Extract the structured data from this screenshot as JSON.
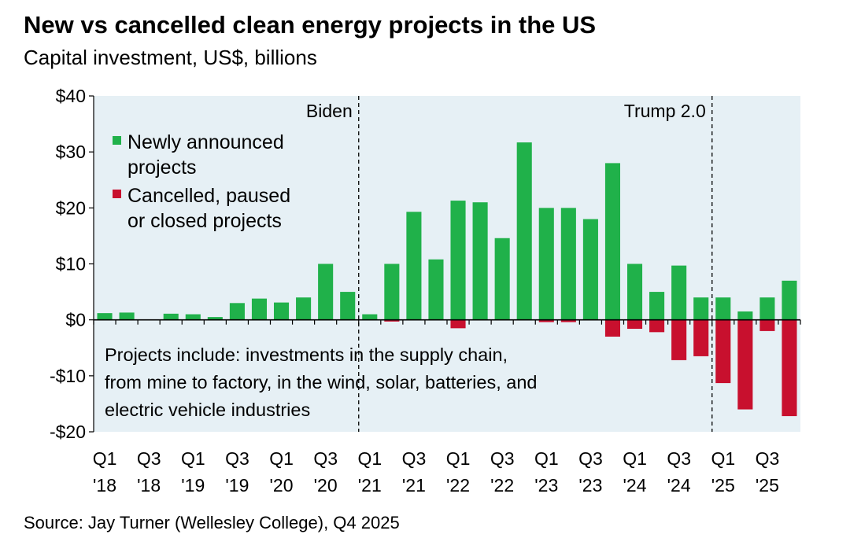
{
  "title": "New vs cancelled clean energy projects in the US",
  "subtitle": "Capital investment, US$, billions",
  "source": "Source: Jay Turner (Wellesley College), Q4 2025",
  "colors": {
    "new": "#20b14a",
    "cancelled": "#c8102e",
    "plot_bg": "#e6f0f5"
  },
  "chart_data": {
    "type": "bar",
    "title": "New vs cancelled clean energy projects in the US",
    "ylabel": "Capital investment, US$, billions",
    "ylim": [
      -20,
      40
    ],
    "yticks": [
      40,
      30,
      20,
      10,
      0,
      -10,
      -20
    ],
    "ytick_labels": [
      "$40",
      "$30",
      "$20",
      "$10",
      "$0",
      "-$10",
      "-$20"
    ],
    "categories": [
      "Q1 '18",
      "Q2 '18",
      "Q3 '18",
      "Q4 '18",
      "Q1 '19",
      "Q2 '19",
      "Q3 '19",
      "Q4 '19",
      "Q1 '20",
      "Q2 '20",
      "Q3 '20",
      "Q4 '20",
      "Q1 '21",
      "Q2 '21",
      "Q3 '21",
      "Q4 '21",
      "Q1 '22",
      "Q2 '22",
      "Q3 '22",
      "Q4 '22",
      "Q1 '23",
      "Q2 '23",
      "Q3 '23",
      "Q4 '23",
      "Q1 '24",
      "Q2 '24",
      "Q3 '24",
      "Q4 '24",
      "Q1 '25",
      "Q2 '25",
      "Q3 '25",
      "Q4 '25"
    ],
    "xtick_labels": [
      {
        "index": 0,
        "q": "Q1",
        "y": "'18"
      },
      {
        "index": 2,
        "q": "Q3",
        "y": "'18"
      },
      {
        "index": 4,
        "q": "Q1",
        "y": "'19"
      },
      {
        "index": 6,
        "q": "Q3",
        "y": "'19"
      },
      {
        "index": 8,
        "q": "Q1",
        "y": "'20"
      },
      {
        "index": 10,
        "q": "Q3",
        "y": "'20"
      },
      {
        "index": 12,
        "q": "Q1",
        "y": "'21"
      },
      {
        "index": 14,
        "q": "Q3",
        "y": "'21"
      },
      {
        "index": 16,
        "q": "Q1",
        "y": "'22"
      },
      {
        "index": 18,
        "q": "Q3",
        "y": "'22"
      },
      {
        "index": 20,
        "q": "Q1",
        "y": "'23"
      },
      {
        "index": 22,
        "q": "Q3",
        "y": "'23"
      },
      {
        "index": 24,
        "q": "Q1",
        "y": "'24"
      },
      {
        "index": 26,
        "q": "Q3",
        "y": "'24"
      },
      {
        "index": 28,
        "q": "Q1",
        "y": "'25"
      },
      {
        "index": 30,
        "q": "Q3",
        "y": "'25"
      }
    ],
    "series": [
      {
        "name": "Newly announced projects",
        "values": [
          1.2,
          1.3,
          0,
          1.1,
          1.0,
          0.5,
          3.0,
          3.8,
          3.1,
          4.0,
          10.0,
          5.0,
          1.0,
          10.0,
          19.3,
          10.8,
          21.3,
          21.0,
          14.6,
          31.7,
          20.0,
          20.0,
          18.0,
          28.0,
          10.0,
          5.0,
          9.7,
          4.0,
          4.0,
          1.5,
          4.0,
          7.0
        ]
      },
      {
        "name": "Cancelled, paused or closed projects",
        "values": [
          0,
          0,
          0,
          0,
          0,
          0,
          0,
          0,
          0,
          0,
          0,
          0,
          0,
          -0.3,
          0,
          0,
          -1.5,
          0,
          0,
          0,
          -0.4,
          -0.4,
          0,
          -3.0,
          -1.6,
          -2.2,
          -7.2,
          -6.5,
          -11.3,
          -16.0,
          -2.0,
          -17.2
        ]
      }
    ],
    "legend": [
      {
        "line1": "Newly announced",
        "line2": "projects"
      },
      {
        "line1": "Cancelled, paused",
        "line2": "or closed projects"
      }
    ],
    "annotations": {
      "biden": {
        "label": "Biden",
        "after_index": 11.5
      },
      "trump": {
        "label": "Trump 2.0",
        "after_index": 27.5
      },
      "note": [
        "Projects include: investments in the supply chain,",
        "from mine to factory, in the wind, solar, batteries, and",
        "electric vehicle industries"
      ]
    }
  }
}
